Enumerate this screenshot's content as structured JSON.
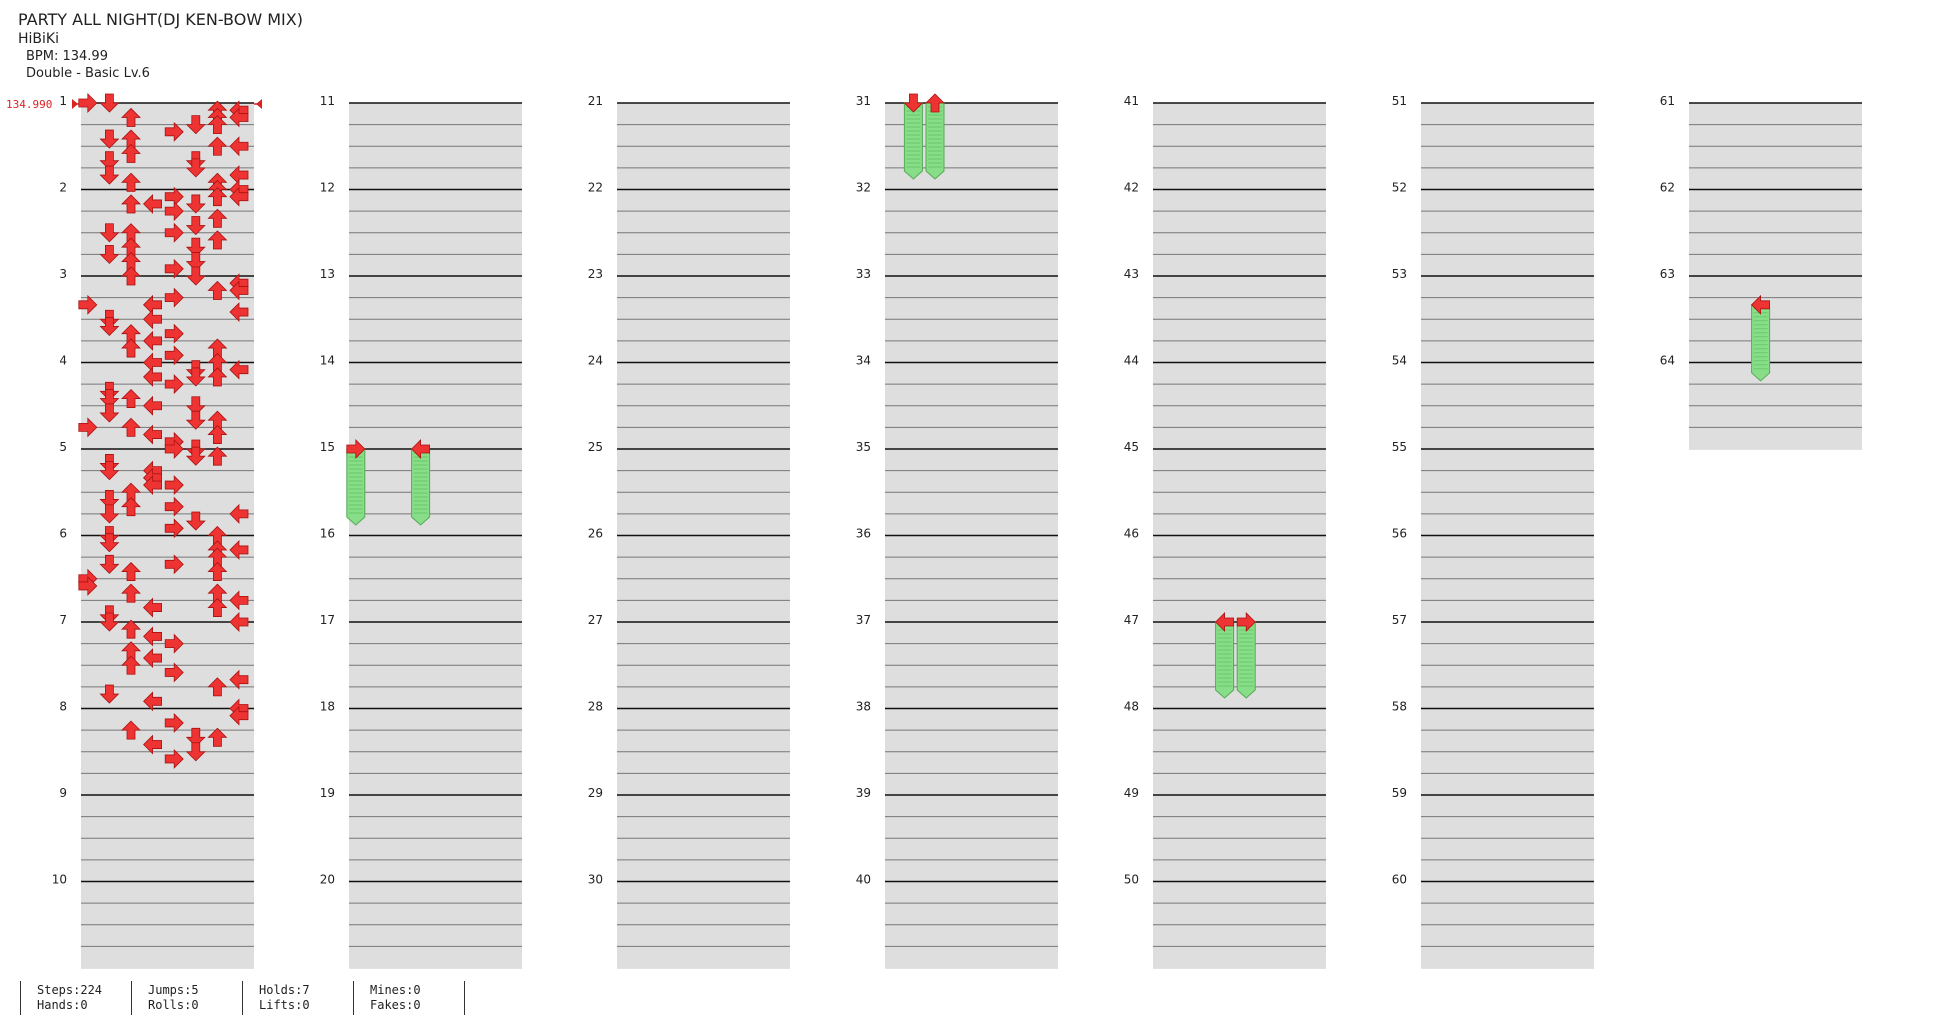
{
  "song": {
    "title": "PARTY ALL NIGHT(DJ KEN-BOW MIX)",
    "artist": "HiBiKi",
    "bpm_label": "BPM: 134.99",
    "difficulty_label": "Double - Basic  Lv.6"
  },
  "bpm_marker": "134.990",
  "stats": {
    "steps": "Steps:224",
    "hands": "Hands:0",
    "jumps": "Jumps:5",
    "rolls": "Rolls:0",
    "holds": "Holds:7",
    "lifts": "Lifts:0",
    "mines": "Mines:0",
    "fakes": "Fakes:0"
  },
  "measures": [
    "1",
    "2",
    "3",
    "4",
    "5",
    "6",
    "7",
    "8",
    "9",
    "10",
    "11",
    "12",
    "13",
    "14",
    "15",
    "16",
    "17",
    "18",
    "19",
    "20",
    "21",
    "22",
    "23",
    "24",
    "25",
    "26",
    "27",
    "28",
    "29",
    "30",
    "31",
    "32",
    "33",
    "34",
    "35",
    "36",
    "37",
    "38",
    "39",
    "40",
    "41",
    "42",
    "43",
    "44",
    "45",
    "46",
    "47",
    "48",
    "49",
    "50",
    "51",
    "52",
    "53",
    "54",
    "55",
    "56",
    "57",
    "58",
    "59",
    "60",
    "61",
    "62",
    "63",
    "64"
  ],
  "colors": {
    "arrow_red": "#ee3333",
    "arrow_blue": "#3355dd",
    "hold_green": "#88dd88",
    "band_gray": "#dedede",
    "bpm_red": "#dd2222"
  },
  "notes": [
    "1:0:0",
    "1:0:1",
    "1:1:6",
    "1:1:7",
    "1:2:6",
    "1:2:7",
    "1:2:2",
    "1:3:5",
    "1:3:6",
    "1:4:4",
    "1:5:1",
    "1:5:2",
    "1:6:6",
    "1:6:7",
    "1:7:2",
    "1:8:5",
    "1:8:1",
    "1:9:5",
    "1:10:1",
    "1:10:7",
    "1:11:2",
    "1:11:6",
    "2:0:6",
    "2:0:7",
    "2:1:4",
    "2:1:6",
    "2:1:7",
    "2:2:5",
    "2:2:3",
    "2:2:2",
    "2:3:4",
    "2:4:6",
    "2:5:5",
    "2:6:2",
    "2:6:4",
    "2:6:1",
    "2:7:6",
    "2:8:2",
    "2:8:5",
    "2:9:1",
    "2:10:2",
    "2:10:5",
    "2:11:4",
    "3:0:2",
    "3:0:5",
    "3:1:7",
    "3:2:6",
    "3:2:7",
    "3:3:4",
    "3:4:0",
    "3:4:3",
    "3:5:7",
    "3:6:1",
    "3:6:3",
    "3:7:1",
    "3:8:2",
    "3:8:4",
    "3:9:3",
    "3:10:2",
    "3:10:6",
    "3:11:4",
    "4:0:3",
    "4:0:6",
    "4:1:5",
    "4:1:7",
    "4:2:5",
    "4:2:6",
    "4:2:3",
    "4:3:4",
    "4:4:1",
    "4:5:1",
    "4:5:2",
    "4:6:5",
    "4:6:3",
    "4:7:1",
    "4:8:6",
    "4:8:5",
    "4:9:0",
    "4:9:2",
    "4:10:3",
    "4:10:6",
    "4:11:4",
    "5:0:5",
    "5:0:4",
    "5:1:6",
    "5:1:5",
    "5:2:1",
    "5:3:1",
    "5:3:3",
    "5:4:3",
    "5:5:4",
    "5:5:3",
    "5:6:2",
    "5:7:1",
    "5:8:2",
    "5:8:4",
    "5:9:1",
    "5:9:7",
    "5:10:5",
    "5:11:4",
    "6:0:6",
    "6:0:1",
    "6:1:1",
    "6:2:7",
    "6:2:6",
    "6:3:6",
    "6:4:1",
    "6:4:4",
    "6:5:6",
    "6:5:2",
    "6:6:0",
    "6:7:0",
    "6:8:6",
    "6:8:2",
    "6:9:7",
    "6:10:3",
    "6:10:6",
    "6:11:1",
    "7:0:1",
    "7:0:7",
    "7:1:2",
    "7:2:3",
    "7:3:4",
    "7:4:2",
    "7:5:3",
    "7:6:2",
    "7:7:4",
    "7:8:7",
    "7:9:6",
    "7:10:1",
    "7:11:3",
    "8:0:7",
    "8:1:7",
    "8:2:4",
    "8:3:2",
    "8:4:5",
    "8:4:6",
    "8:5:3",
    "8:6:5",
    "8:7:4"
  ],
  "holds_data": [
    "15:0:0",
    "15:0:3",
    "31:0:1",
    "31:0:2",
    "47:0:3",
    "47:0:4",
    "63:4:3"
  ]
}
